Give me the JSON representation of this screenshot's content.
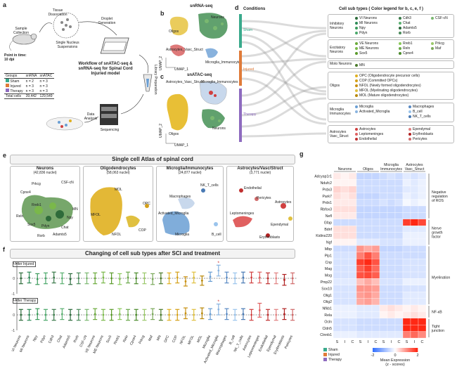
{
  "panel_a": {
    "label": "a",
    "steps": [
      "Sample Collection",
      "Tissue Dissociation",
      "Droplet Generation",
      "Single Nucleus Suspensions",
      "Library Preparation",
      "Sequencing",
      "Data Analysis"
    ],
    "timepoint": "Point in time: 10 dpi",
    "workflow_title": "Workflow of snATAC-seq & snRNA-seq for Spinal Cord Injuried model",
    "table": {
      "headers": [
        "Groups",
        "snRNA",
        "snATAC"
      ],
      "rows": [
        [
          "Sham",
          "n = 2",
          "n = 3"
        ],
        [
          "Injured",
          "n = 3",
          "n = 3"
        ],
        [
          "Therapy",
          "n = 3",
          "n = 3"
        ]
      ],
      "total": [
        "Total cells",
        "39,442",
        "129,549"
      ]
    }
  },
  "panel_b": {
    "label": "b",
    "title": "snRNA-seq",
    "clusters": [
      "Oligos",
      "Neurons",
      "Astrocytes_Vasc_Struct",
      "Microglia_Immunocytes"
    ],
    "xlabel": "UMAP_1",
    "ylabel": "UMAP_2"
  },
  "panel_c": {
    "label": "c",
    "title": "snATAC-seq",
    "clusters": [
      "Astrocytes_Vasc_Struct",
      "Microglia_Immunocytes",
      "Neurons",
      "Oligos"
    ],
    "xlabel": "UMAP_1",
    "ylabel": "UMAP_2"
  },
  "panel_d": {
    "label": "d",
    "conditions_title": "Conditions",
    "subtypes_title": "Cell sub types ( Color legend for b, c, e, f )",
    "conditions": [
      {
        "name": "Sham",
        "color": "#3aaa8c"
      },
      {
        "name": "Injured",
        "color": "#e07b39"
      },
      {
        "name": "Therapy",
        "color": "#8e6bbf"
      }
    ],
    "groups": [
      {
        "name": "Inhibitory Neurons",
        "items": [
          "VI Neurons",
          "MI Neurons",
          "Npy",
          "Pdyn",
          "Cdh3",
          "Chat",
          "Adamts5",
          "Rorb",
          "CSF-cN"
        ],
        "color": "#2e8b57"
      },
      {
        "name": "Excitatory Neurons",
        "items": [
          "VE Neurons",
          "ME Neurons",
          "Sox5",
          "Rreb1",
          "Reln",
          "Cpne4",
          "Prkcg",
          "Maf"
        ],
        "color": "#6aaa3a"
      },
      {
        "name": "Moto Neurons",
        "items": [
          "MN"
        ],
        "color": "#4a7a2a"
      },
      {
        "name": "Oligos",
        "items": [
          "OPC (Oligodendrocyte precursor cells)",
          "COP (Committed OPCs)",
          "NFOL (Newly formed oligodendrocytes)",
          "MFOL (Myelinating oligodendrocytes)",
          "MOL (Mature oligodendrocytes)"
        ],
        "color": "#e0b020"
      },
      {
        "name": "Microglia Immunocytes",
        "items": [
          "Microglia",
          "Activated_Microglia",
          "Macrophages",
          "B_cell",
          "NK_T_cells"
        ],
        "color": "#6a9fd4"
      },
      {
        "name": "Astrocytes Vasc_Struct",
        "items": [
          "Astrocytes",
          "Leptomeninges",
          "Endothelial",
          "Ependymal",
          "Erythroblasts",
          "Pericytes"
        ],
        "color": "#d04040"
      }
    ]
  },
  "panel_e": {
    "label": "e",
    "title": "Single cell Atlas of spinal cord",
    "boxes": [
      {
        "name": "Neurons",
        "count": "(42,836 nuclei)",
        "labels": [
          "CSF-cN",
          "Prkcg",
          "Cpne4",
          "Rreb1",
          "Reln",
          "Sox5",
          "Pdyn",
          "Chat",
          "MN",
          "Npy",
          "Rorb",
          "Adamts5"
        ]
      },
      {
        "name": "Oligodendrocytes",
        "count": "(58,063 nuclei)",
        "labels": [
          "MOL",
          "OPC",
          "MFOL",
          "NFOL",
          "COP"
        ]
      },
      {
        "name": "Microglia/Immunocytes",
        "count": "(24,877 nuclei)",
        "labels": [
          "NK_T_cells",
          "Macrophages",
          "Activated_Microglia",
          "Microglia",
          "B_cell"
        ]
      },
      {
        "name": "Astrocytes/Vasc/Struct",
        "count": "(3,771 nuclei)",
        "labels": [
          "Endothelial",
          "Pericytes",
          "Astrocytes",
          "Leptomeninges",
          "Ependymal",
          "Erythroblasts"
        ]
      }
    ]
  },
  "chart_data": [
    {
      "type": "errorbar",
      "title": "Changing of cell sub types after SCI and treatment",
      "panel": "f",
      "subpanels": [
        "After Injured",
        "After Therapy"
      ],
      "ylim": [
        -1,
        1
      ],
      "yticks": [
        "1",
        "0",
        "-1"
      ],
      "categories": [
        "VI Neurons",
        "MI Neurons",
        "Npy",
        "Pdyn",
        "Cdh3",
        "Chat",
        "Adamts5",
        "Rorb",
        "CSF-cN",
        "VE Neurons",
        "ME Neurons",
        "Sox5",
        "Rreb1",
        "Reln",
        "Cpne4",
        "Prkcg",
        "Maf",
        "MN",
        "OPC",
        "COP",
        "NFOL",
        "MFOL",
        "MOL",
        "Microglia",
        "Activated_Microglia",
        "Macrophages",
        "B_cell",
        "NK_T_cells",
        "Astrocytes",
        "Leptomeninges",
        "Endothelial",
        "Ependymal",
        "Erythroblasts",
        "Pericytes"
      ],
      "colors": [
        "#2e6b3a",
        "#2e8b57",
        "#3a9a5a",
        "#4aa86a",
        "#3a7a4a",
        "#5ab070",
        "#2a6a3a",
        "#4a8a5a",
        "#7ab870",
        "#6aaa3a",
        "#7ab84a",
        "#5a9a2a",
        "#8ac85a",
        "#6aa84a",
        "#4a8a2a",
        "#9ac86a",
        "#7aa85a",
        "#4a7a2a",
        "#e0b020",
        "#d4a018",
        "#c89010",
        "#e0c040",
        "#b88808",
        "#6a9fd4",
        "#8ab4e0",
        "#5a8ac4",
        "#9ac4ec",
        "#4a7ab4",
        "#d04040",
        "#e06060",
        "#c03030",
        "#e08080",
        "#b02020",
        "#d06a6a"
      ],
      "injured_means": [
        0,
        0.05,
        -0.05,
        0,
        0.05,
        0,
        -0.05,
        0,
        0,
        0,
        0.05,
        0,
        -0.05,
        0.05,
        0,
        0,
        -0.05,
        0,
        0,
        0.05,
        -0.2,
        0.05,
        -0.15,
        0.1,
        0.5,
        0.05,
        0,
        0.05,
        0.05,
        0.05,
        0,
        0,
        -0.1,
        0
      ],
      "therapy_means": [
        0,
        0,
        0.05,
        0,
        0,
        0.05,
        0,
        0,
        0,
        0.05,
        0,
        0,
        0.05,
        0,
        0,
        0,
        0.05,
        0,
        0,
        0,
        0.1,
        0,
        0.1,
        0.05,
        0.35,
        0.05,
        0,
        0.05,
        0,
        0.3,
        0,
        0,
        0.05,
        0
      ],
      "injured_err": [
        0.35,
        0.35,
        0.35,
        0.35,
        0.35,
        0.35,
        0.35,
        0.35,
        0.35,
        0.35,
        0.35,
        0.35,
        0.35,
        0.35,
        0.35,
        0.35,
        0.35,
        0.35,
        0.35,
        0.35,
        0.3,
        0.35,
        0.3,
        0.3,
        0.35,
        0.35,
        0.35,
        0.35,
        0.35,
        0.35,
        0.35,
        0.35,
        0.35,
        0.35
      ],
      "therapy_err": [
        0.35,
        0.35,
        0.35,
        0.35,
        0.35,
        0.35,
        0.35,
        0.35,
        0.35,
        0.35,
        0.35,
        0.35,
        0.35,
        0.35,
        0.35,
        0.35,
        0.35,
        0.35,
        0.35,
        0.35,
        0.35,
        0.35,
        0.35,
        0.35,
        0.35,
        0.35,
        0.35,
        0.35,
        0.35,
        0.45,
        0.35,
        0.35,
        0.35,
        0.35
      ],
      "significant": [
        "Activated_Microglia"
      ]
    },
    {
      "type": "heatmap",
      "panel": "g",
      "column_groups": [
        "Neurons",
        "Oligos",
        "Microglia Immunocytes",
        "Astrocytes Vasc_Struct"
      ],
      "columns": [
        "S",
        "I",
        "C",
        "S",
        "I",
        "C",
        "S",
        "I",
        "C",
        "S",
        "I",
        "C"
      ],
      "genes": [
        "Adcyap1r1",
        "Ndufc2",
        "Prdx3",
        "Park7",
        "Prdx1",
        "Rbfox3",
        "Nefl",
        "Gfap",
        "Bdnf",
        "Kidins220",
        "Ngf",
        "Mbp",
        "Plp1",
        "Cnp",
        "Mag",
        "Mog",
        "Pmp22",
        "Sox10",
        "Olig1",
        "Olig2",
        "Nfkb1",
        "Rela",
        "Ocln",
        "Cldn5",
        "Ctnnb1"
      ],
      "categories": [
        {
          "name": "Negative regulation of ROS"
        },
        {
          "name": "Nerve growth factor"
        },
        {
          "name": "Myelination"
        },
        {
          "name": "NF-κB"
        },
        {
          "name": "Tight junction"
        }
      ],
      "values": [
        [
          0.2,
          0.1,
          0.2,
          -0.6,
          -0.6,
          -0.6,
          -0.5,
          -0.4,
          -0.5,
          -0.3,
          -0.4,
          -0.3
        ],
        [
          0.1,
          0.1,
          0.1,
          -0.5,
          -0.5,
          -0.5,
          -0.5,
          -0.5,
          -0.5,
          -0.2,
          -0.3,
          -0.2
        ],
        [
          0.4,
          0.3,
          0.4,
          -0.5,
          -0.5,
          -0.5,
          -0.5,
          -0.5,
          -0.5,
          -0.3,
          -0.3,
          -0.2
        ],
        [
          0.3,
          0.2,
          0.3,
          -0.6,
          -0.6,
          -0.6,
          -0.5,
          -0.5,
          -0.5,
          -0.2,
          -0.3,
          -0.2
        ],
        [
          0.2,
          0.2,
          0.2,
          -0.5,
          -0.5,
          -0.5,
          -0.4,
          -0.5,
          -0.4,
          -0.1,
          -0.2,
          -0.1
        ],
        [
          0.3,
          0.3,
          0.3,
          -0.6,
          -0.6,
          -0.6,
          -0.6,
          -0.6,
          -0.6,
          -0.5,
          -0.5,
          -0.5
        ],
        [
          0.2,
          0.2,
          0.2,
          -0.6,
          -0.6,
          -0.6,
          -0.6,
          -0.6,
          -0.6,
          -0.5,
          -0.5,
          -0.5
        ],
        [
          -0.5,
          -0.5,
          -0.5,
          -0.5,
          -0.5,
          -0.5,
          -0.5,
          -0.5,
          -0.5,
          1.8,
          2.0,
          1.7
        ],
        [
          0.3,
          0.3,
          0.3,
          -0.5,
          -0.5,
          -0.5,
          -0.5,
          -0.5,
          -0.5,
          -0.3,
          -0.3,
          -0.3
        ],
        [
          0.3,
          0.3,
          0.3,
          -0.5,
          -0.5,
          -0.5,
          -0.5,
          -0.5,
          -0.5,
          -0.2,
          -0.2,
          -0.2
        ],
        [
          0.1,
          0.1,
          0.1,
          -0.3,
          -0.3,
          -0.3,
          -0.4,
          -0.4,
          -0.4,
          -0.2,
          -0.2,
          -0.2
        ],
        [
          -0.5,
          -0.5,
          -0.5,
          1.0,
          0.8,
          0.9,
          -0.6,
          -0.6,
          -0.6,
          -0.5,
          -0.5,
          -0.5
        ],
        [
          -0.4,
          -0.4,
          -0.4,
          1.2,
          1.6,
          1.2,
          -0.5,
          -0.5,
          -0.5,
          -0.5,
          -0.5,
          -0.5
        ],
        [
          -0.4,
          -0.4,
          -0.4,
          1.8,
          2.0,
          1.6,
          -0.5,
          -0.5,
          -0.5,
          -0.4,
          -0.4,
          -0.4
        ],
        [
          -0.4,
          -0.4,
          -0.4,
          1.5,
          1.8,
          1.4,
          -0.5,
          -0.5,
          -0.5,
          -0.4,
          -0.4,
          -0.4
        ],
        [
          -0.4,
          -0.4,
          -0.4,
          1.6,
          1.7,
          1.5,
          -0.5,
          -0.5,
          -0.5,
          -0.4,
          -0.4,
          -0.4
        ],
        [
          -0.3,
          -0.3,
          -0.3,
          0.6,
          0.8,
          0.6,
          -0.4,
          -0.4,
          -0.4,
          -0.2,
          -0.2,
          -0.2
        ],
        [
          -0.4,
          -0.4,
          -0.4,
          1.0,
          1.0,
          0.9,
          -0.5,
          -0.5,
          -0.5,
          -0.4,
          -0.4,
          -0.4
        ],
        [
          -0.4,
          -0.4,
          -0.4,
          0.9,
          1.0,
          0.8,
          -0.5,
          -0.5,
          -0.5,
          -0.3,
          -0.3,
          -0.3
        ],
        [
          -0.4,
          -0.4,
          -0.4,
          0.8,
          0.9,
          0.7,
          -0.5,
          -0.5,
          -0.5,
          -0.3,
          -0.3,
          -0.3
        ],
        [
          -0.2,
          -0.2,
          -0.2,
          -0.3,
          -0.3,
          -0.3,
          0.2,
          0.3,
          0.2,
          0.1,
          0.2,
          0.1
        ],
        [
          -0.2,
          -0.2,
          -0.2,
          -0.3,
          -0.3,
          -0.3,
          0.1,
          0.2,
          0.1,
          0.2,
          0.3,
          0.2
        ],
        [
          -0.4,
          -0.4,
          -0.4,
          -0.5,
          -0.5,
          -0.5,
          -0.5,
          -0.5,
          -0.5,
          2.0,
          2.2,
          2.0
        ],
        [
          -0.4,
          -0.4,
          -0.4,
          -0.5,
          -0.5,
          -0.5,
          -0.5,
          -0.5,
          -0.5,
          2.2,
          2.4,
          2.1
        ],
        [
          -0.2,
          -0.2,
          -0.2,
          -0.3,
          -0.3,
          -0.3,
          -0.3,
          -0.3,
          -0.3,
          1.2,
          1.4,
          1.1
        ]
      ],
      "legend": {
        "conditions": [
          "Sham",
          "Injured",
          "Therapy"
        ],
        "title": "Mean Expression (z - scores)",
        "ticks": [
          "-2",
          "0",
          "2"
        ]
      }
    }
  ]
}
